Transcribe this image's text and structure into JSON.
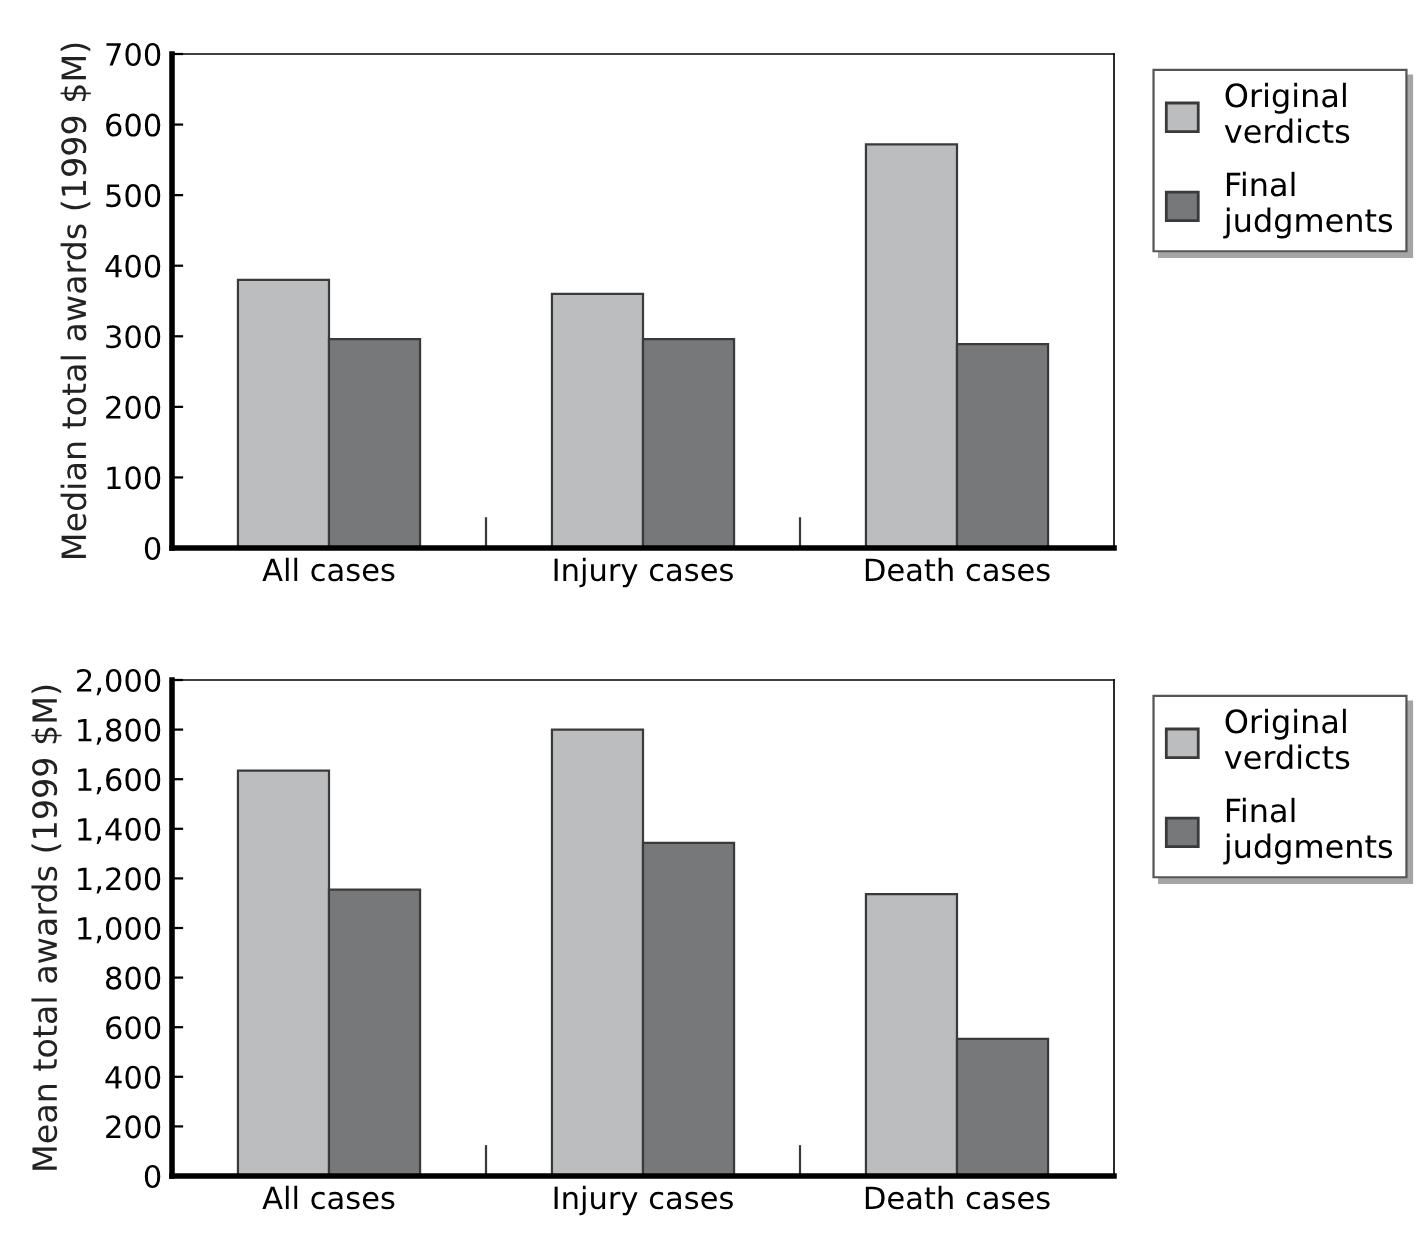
{
  "chart_data": [
    {
      "type": "bar",
      "ylabel": "Median total awards (1999 $M)",
      "categories": [
        "All cases",
        "Injury cases",
        "Death cases"
      ],
      "series": [
        {
          "name": "Original\nverdicts",
          "color": "#bcbdbf",
          "values": [
            380,
            360,
            572
          ]
        },
        {
          "name": "Final\njudgments",
          "color": "#77787a",
          "values": [
            296,
            296,
            289
          ]
        }
      ],
      "ylim": [
        0,
        700
      ],
      "yticks": [
        0,
        100,
        200,
        300,
        400,
        500,
        600,
        700
      ],
      "grid": false,
      "legend": "top right"
    },
    {
      "type": "bar",
      "ylabel": "Mean total awards (1999 $M)",
      "categories": [
        "All cases",
        "Injury cases",
        "Death cases"
      ],
      "series": [
        {
          "name": "Original\nverdicts",
          "color": "#bcbdbf",
          "values": [
            1635,
            1800,
            1137
          ]
        },
        {
          "name": "Final\njudgments",
          "color": "#77787a",
          "values": [
            1155,
            1343,
            553
          ]
        }
      ],
      "ylim": [
        0,
        2000
      ],
      "yticks": [
        {
          "value": 0,
          "label": "0"
        },
        {
          "value": 200,
          "label": "200"
        },
        {
          "value": 400,
          "label": "400"
        },
        {
          "value": 600,
          "label": "600"
        },
        {
          "value": 800,
          "label": "800"
        },
        {
          "value": 1000,
          "label": "1,000"
        },
        {
          "value": 1200,
          "label": "1,200"
        },
        {
          "value": 1400,
          "label": "1,400"
        },
        {
          "value": 1600,
          "label": "1,600"
        },
        {
          "value": 1800,
          "label": "1,800"
        },
        {
          "value": 2000,
          "label": "2,000"
        }
      ],
      "grid": false,
      "legend": "top right"
    }
  ]
}
